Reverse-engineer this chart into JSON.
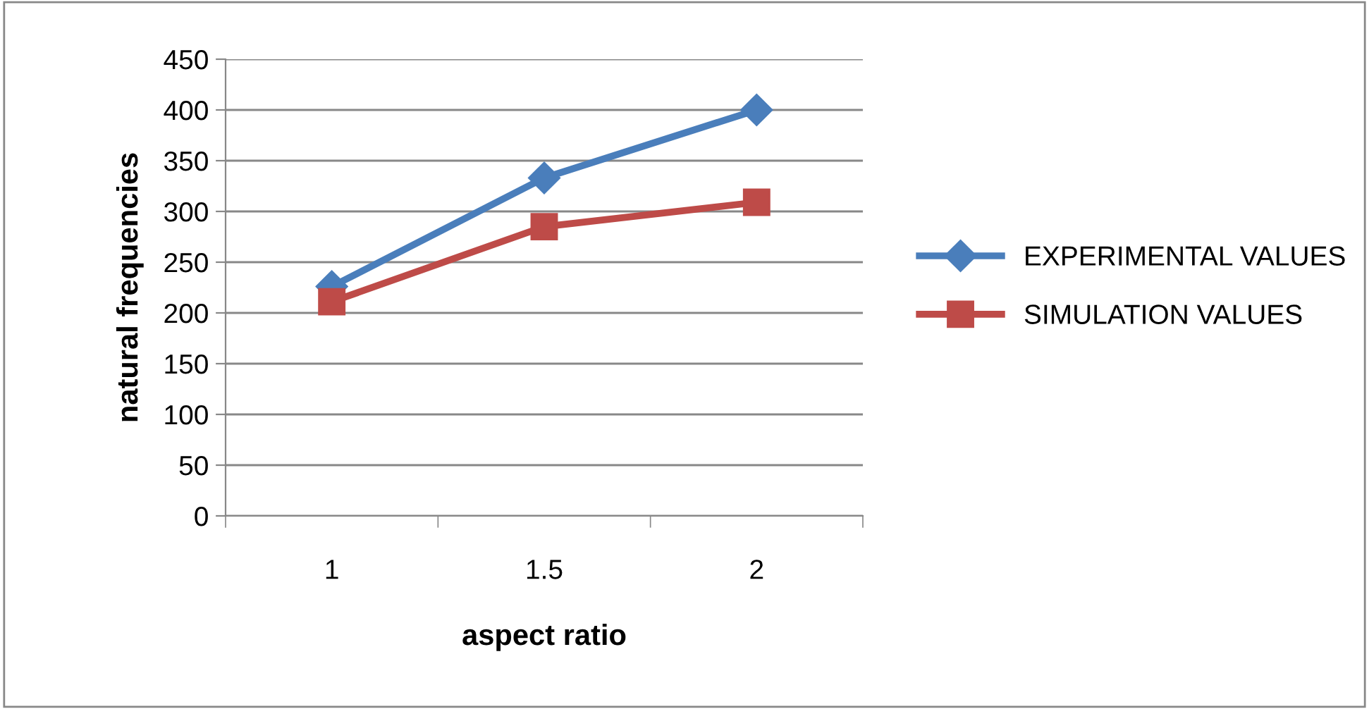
{
  "chart_data": {
    "type": "line",
    "xlabel": "aspect ratio",
    "ylabel": "natural frequencies",
    "categories": [
      "1",
      "1.5",
      "2"
    ],
    "series": [
      {
        "name": "EXPERIMENTAL VALUES",
        "color": "#4a7ebb",
        "values": [
          226,
          333,
          400
        ],
        "marker": "diamond"
      },
      {
        "name": "SIMULATION VALUES",
        "color": "#be4b48",
        "values": [
          211,
          285,
          309
        ],
        "marker": "square"
      }
    ],
    "ylim": [
      0,
      450
    ],
    "yticks": [
      0,
      50,
      100,
      150,
      200,
      250,
      300,
      350,
      400,
      450
    ],
    "grid": "y",
    "legend": "right",
    "line_style": "solid"
  }
}
